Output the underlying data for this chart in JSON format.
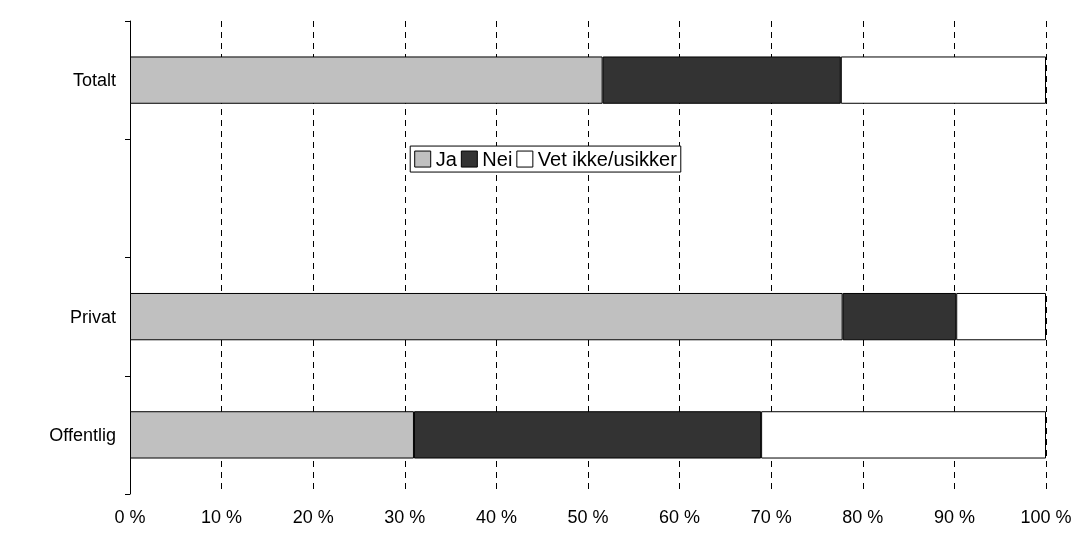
{
  "chart_data": {
    "type": "bar",
    "orientation": "horizontal",
    "stacked": true,
    "categories": [
      "Totalt",
      null,
      "Privat",
      "Offentlig"
    ],
    "series": [
      {
        "name": "Ja",
        "color": "#c0c0c0",
        "values": [
          51.6,
          null,
          77.8,
          31.0
        ]
      },
      {
        "name": "Nei",
        "color": "#333333",
        "values": [
          26.0,
          null,
          12.4,
          37.9
        ]
      },
      {
        "name": "Vet ikke/usikker",
        "color": "#ffffff",
        "values": [
          22.4,
          null,
          9.8,
          31.1
        ]
      }
    ],
    "xlim": [
      0,
      100
    ],
    "xticks": [
      {
        "value": 0,
        "label": "0 %"
      },
      {
        "value": 10,
        "label": "10 %"
      },
      {
        "value": 20,
        "label": "20 %"
      },
      {
        "value": 30,
        "label": "30 %"
      },
      {
        "value": 40,
        "label": "40 %"
      },
      {
        "value": 50,
        "label": "50 %"
      },
      {
        "value": 60,
        "label": "60 %"
      },
      {
        "value": 70,
        "label": "70 %"
      },
      {
        "value": 80,
        "label": "80 %"
      },
      {
        "value": 90,
        "label": "90 %"
      },
      {
        "value": 100,
        "label": "100 %"
      }
    ],
    "grid": "x",
    "legend": "center"
  }
}
